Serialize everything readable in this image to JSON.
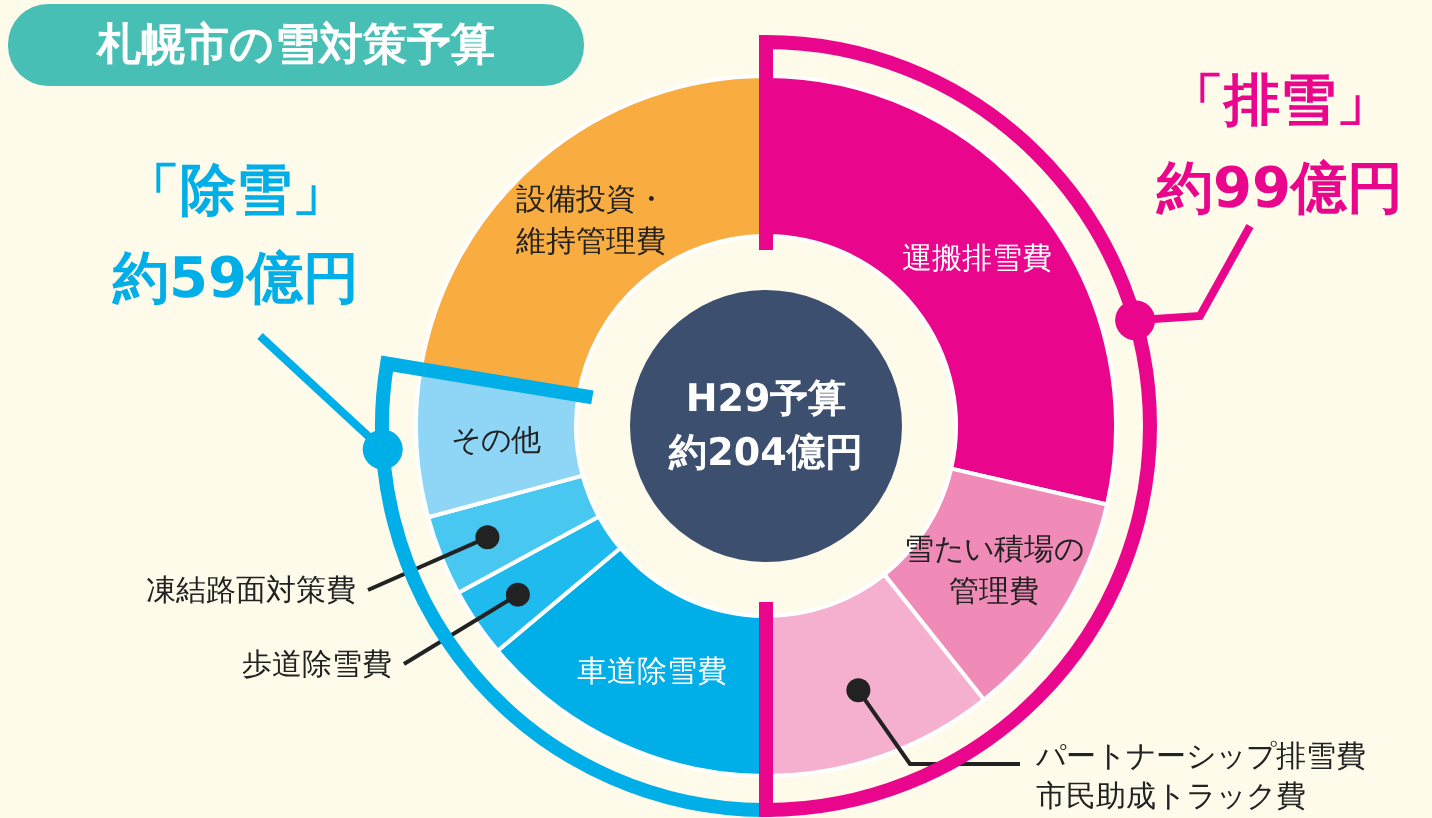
{
  "chart_data": {
    "type": "donut",
    "title": "札幌市の雪対策予算",
    "categories": [
      "運搬排雪費",
      "雪たい積場の管理費",
      "パートナーシップ排雪費市民助成トラック費",
      "車道除雪費",
      "歩道除雪費",
      "凍結路面対策費",
      "その他",
      "設備投資・維持管理費"
    ],
    "values": [
      28.6,
      10.7,
      10.7,
      13.9,
      3.2,
      3.7,
      6.8,
      22.4
    ],
    "colors": [
      "#ea068c",
      "#f08bb8",
      "#f5b0d0",
      "#00aee8",
      "#1fbbee",
      "#48c7f1",
      "#8fd6f6",
      "#f9ac40"
    ],
    "annotations": [
      "H29予算約204億円",
      "「除雪」約59億円",
      "「排雪」約99億円"
    ]
  }
}
